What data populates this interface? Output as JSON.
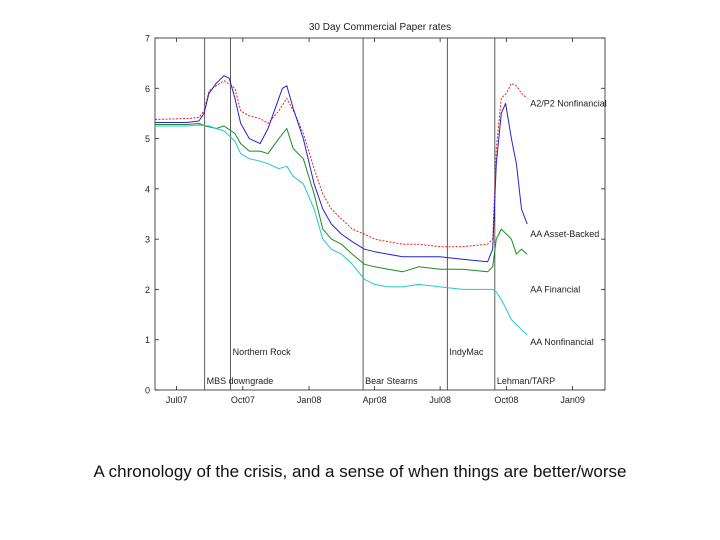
{
  "chart_data": {
    "type": "line",
    "title": "30 Day Commercial Paper rates",
    "xlabel": "",
    "ylabel": "",
    "ylim": [
      0,
      7
    ],
    "yticks": [
      "0",
      "1",
      "2",
      "3",
      "4",
      "5",
      "6",
      "7"
    ],
    "xlim": [
      "2007-06-01",
      "2009-02-15"
    ],
    "xticks": [
      {
        "date": "2007-07-01",
        "label": "Jul07"
      },
      {
        "date": "2007-10-01",
        "label": "Oct07"
      },
      {
        "date": "2008-01-01",
        "label": "Jan08"
      },
      {
        "date": "2008-04-01",
        "label": "Apr08"
      },
      {
        "date": "2008-07-01",
        "label": "Jul08"
      },
      {
        "date": "2008-10-01",
        "label": "Oct08"
      },
      {
        "date": "2009-01-01",
        "label": "Jan09"
      }
    ],
    "grid": false,
    "events": [
      {
        "date": "2007-08-09",
        "label": "MBS downgrade",
        "label_position": "bottom"
      },
      {
        "date": "2007-09-14",
        "label": "Northern Rock",
        "label_position": "middle"
      },
      {
        "date": "2008-03-16",
        "label": "Bear Stearns",
        "label_position": "bottom"
      },
      {
        "date": "2008-07-11",
        "label": "IndyMac",
        "label_position": "middle"
      },
      {
        "date": "2008-09-15",
        "label": "Lehman/TARP",
        "label_position": "bottom"
      }
    ],
    "series": [
      {
        "name": "A2/P2 Nonfinancial",
        "color": "#e8201c",
        "style": "dashed",
        "points": [
          [
            "2007-06-01",
            5.38
          ],
          [
            "2007-07-15",
            5.4
          ],
          [
            "2007-08-01",
            5.42
          ],
          [
            "2007-08-08",
            5.55
          ],
          [
            "2007-08-15",
            5.95
          ],
          [
            "2007-08-25",
            6.05
          ],
          [
            "2007-09-05",
            6.15
          ],
          [
            "2007-09-20",
            6.0
          ],
          [
            "2007-09-28",
            5.55
          ],
          [
            "2007-10-10",
            5.45
          ],
          [
            "2007-10-25",
            5.4
          ],
          [
            "2007-11-05",
            5.3
          ],
          [
            "2007-11-20",
            5.55
          ],
          [
            "2007-12-01",
            5.8
          ],
          [
            "2007-12-12",
            5.5
          ],
          [
            "2007-12-24",
            5.1
          ],
          [
            "2008-01-08",
            4.4
          ],
          [
            "2008-01-20",
            3.9
          ],
          [
            "2008-02-01",
            3.6
          ],
          [
            "2008-02-15",
            3.4
          ],
          [
            "2008-03-01",
            3.2
          ],
          [
            "2008-03-18",
            3.1
          ],
          [
            "2008-04-01",
            3.0
          ],
          [
            "2008-04-20",
            2.95
          ],
          [
            "2008-05-10",
            2.9
          ],
          [
            "2008-06-01",
            2.9
          ],
          [
            "2008-07-01",
            2.85
          ],
          [
            "2008-08-01",
            2.85
          ],
          [
            "2008-09-05",
            2.9
          ],
          [
            "2008-09-12",
            3.0
          ],
          [
            "2008-09-17",
            4.8
          ],
          [
            "2008-09-24",
            5.8
          ],
          [
            "2008-10-01",
            5.9
          ],
          [
            "2008-10-08",
            6.1
          ],
          [
            "2008-10-15",
            6.05
          ],
          [
            "2008-10-22",
            5.9
          ],
          [
            "2008-10-30",
            5.8
          ]
        ]
      },
      {
        "name": "AA Asset-Backed",
        "color": "#2424c8",
        "style": "solid",
        "points": [
          [
            "2007-06-01",
            5.32
          ],
          [
            "2007-07-15",
            5.32
          ],
          [
            "2007-08-01",
            5.35
          ],
          [
            "2007-08-08",
            5.5
          ],
          [
            "2007-08-15",
            5.9
          ],
          [
            "2007-08-25",
            6.1
          ],
          [
            "2007-09-05",
            6.25
          ],
          [
            "2007-09-12",
            6.2
          ],
          [
            "2007-09-20",
            5.8
          ],
          [
            "2007-09-28",
            5.3
          ],
          [
            "2007-10-10",
            5.0
          ],
          [
            "2007-10-25",
            4.9
          ],
          [
            "2007-11-05",
            5.2
          ],
          [
            "2007-11-15",
            5.6
          ],
          [
            "2007-11-25",
            6.0
          ],
          [
            "2007-12-01",
            6.05
          ],
          [
            "2007-12-10",
            5.6
          ],
          [
            "2007-12-24",
            5.0
          ],
          [
            "2008-01-08",
            4.1
          ],
          [
            "2008-01-20",
            3.6
          ],
          [
            "2008-02-01",
            3.3
          ],
          [
            "2008-02-15",
            3.1
          ],
          [
            "2008-03-01",
            2.95
          ],
          [
            "2008-03-18",
            2.8
          ],
          [
            "2008-04-01",
            2.75
          ],
          [
            "2008-04-20",
            2.7
          ],
          [
            "2008-05-10",
            2.65
          ],
          [
            "2008-06-01",
            2.65
          ],
          [
            "2008-07-01",
            2.65
          ],
          [
            "2008-08-01",
            2.6
          ],
          [
            "2008-09-05",
            2.55
          ],
          [
            "2008-09-12",
            2.8
          ],
          [
            "2008-09-17",
            4.5
          ],
          [
            "2008-09-24",
            5.5
          ],
          [
            "2008-09-30",
            5.7
          ],
          [
            "2008-10-08",
            5.0
          ],
          [
            "2008-10-15",
            4.5
          ],
          [
            "2008-10-22",
            3.6
          ],
          [
            "2008-10-30",
            3.3
          ]
        ]
      },
      {
        "name": "AA Financial",
        "color": "#1c8c1c",
        "style": "solid",
        "points": [
          [
            "2007-06-01",
            5.28
          ],
          [
            "2007-07-15",
            5.28
          ],
          [
            "2007-08-01",
            5.3
          ],
          [
            "2007-08-10",
            5.25
          ],
          [
            "2007-08-25",
            5.2
          ],
          [
            "2007-09-05",
            5.25
          ],
          [
            "2007-09-20",
            5.1
          ],
          [
            "2007-09-28",
            4.9
          ],
          [
            "2007-10-10",
            4.75
          ],
          [
            "2007-10-25",
            4.75
          ],
          [
            "2007-11-05",
            4.7
          ],
          [
            "2007-11-20",
            5.0
          ],
          [
            "2007-12-01",
            5.2
          ],
          [
            "2007-12-10",
            4.8
          ],
          [
            "2007-12-24",
            4.6
          ],
          [
            "2008-01-08",
            3.9
          ],
          [
            "2008-01-20",
            3.2
          ],
          [
            "2008-02-01",
            3.0
          ],
          [
            "2008-02-15",
            2.9
          ],
          [
            "2008-03-01",
            2.7
          ],
          [
            "2008-03-18",
            2.5
          ],
          [
            "2008-04-01",
            2.45
          ],
          [
            "2008-04-20",
            2.4
          ],
          [
            "2008-05-10",
            2.35
          ],
          [
            "2008-06-01",
            2.45
          ],
          [
            "2008-07-01",
            2.4
          ],
          [
            "2008-08-01",
            2.4
          ],
          [
            "2008-09-05",
            2.35
          ],
          [
            "2008-09-12",
            2.45
          ],
          [
            "2008-09-17",
            3.0
          ],
          [
            "2008-09-24",
            3.2
          ],
          [
            "2008-10-01",
            3.1
          ],
          [
            "2008-10-08",
            3.0
          ],
          [
            "2008-10-15",
            2.7
          ],
          [
            "2008-10-22",
            2.8
          ],
          [
            "2008-10-30",
            2.7
          ]
        ]
      },
      {
        "name": "AA Nonfinancial",
        "color": "#22c8d0",
        "style": "solid",
        "points": [
          [
            "2007-06-01",
            5.25
          ],
          [
            "2007-07-15",
            5.25
          ],
          [
            "2007-08-01",
            5.27
          ],
          [
            "2007-08-15",
            5.25
          ],
          [
            "2007-08-25",
            5.2
          ],
          [
            "2007-09-05",
            5.15
          ],
          [
            "2007-09-20",
            4.95
          ],
          [
            "2007-09-28",
            4.7
          ],
          [
            "2007-10-10",
            4.6
          ],
          [
            "2007-10-25",
            4.55
          ],
          [
            "2007-11-05",
            4.5
          ],
          [
            "2007-11-20",
            4.4
          ],
          [
            "2007-12-01",
            4.45
          ],
          [
            "2007-12-10",
            4.25
          ],
          [
            "2007-12-24",
            4.1
          ],
          [
            "2008-01-08",
            3.6
          ],
          [
            "2008-01-20",
            3.0
          ],
          [
            "2008-02-01",
            2.8
          ],
          [
            "2008-02-15",
            2.7
          ],
          [
            "2008-03-01",
            2.5
          ],
          [
            "2008-03-18",
            2.2
          ],
          [
            "2008-04-01",
            2.1
          ],
          [
            "2008-04-20",
            2.05
          ],
          [
            "2008-05-10",
            2.05
          ],
          [
            "2008-06-01",
            2.1
          ],
          [
            "2008-07-01",
            2.05
          ],
          [
            "2008-08-01",
            2.0
          ],
          [
            "2008-09-05",
            2.0
          ],
          [
            "2008-09-12",
            2.0
          ],
          [
            "2008-09-17",
            1.95
          ],
          [
            "2008-09-24",
            1.8
          ],
          [
            "2008-10-01",
            1.6
          ],
          [
            "2008-10-08",
            1.4
          ],
          [
            "2008-10-15",
            1.3
          ],
          [
            "2008-10-22",
            1.2
          ],
          [
            "2008-10-30",
            1.1
          ]
        ]
      }
    ]
  },
  "caption": "A chronology of the crisis, and a sense of when things are better/worse"
}
